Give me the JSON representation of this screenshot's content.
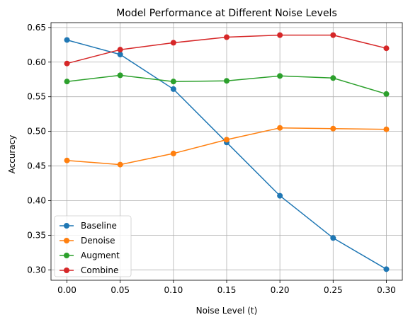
{
  "chart_data": {
    "type": "line",
    "title": "Model Performance at Different Noise Levels",
    "xlabel": "Noise Level (t)",
    "ylabel": "Accuracy",
    "x": [
      0.0,
      0.05,
      0.1,
      0.15,
      0.2,
      0.25,
      0.3
    ],
    "xlim": [
      -0.015,
      0.315
    ],
    "ylim": [
      0.285,
      0.657
    ],
    "xticks": [
      0.0,
      0.05,
      0.1,
      0.15,
      0.2,
      0.25,
      0.3
    ],
    "xtick_labels": [
      "0.00",
      "0.05",
      "0.10",
      "0.15",
      "0.20",
      "0.25",
      "0.30"
    ],
    "yticks": [
      0.3,
      0.35,
      0.4,
      0.45,
      0.5,
      0.55,
      0.6,
      0.65
    ],
    "ytick_labels": [
      "0.30",
      "0.35",
      "0.40",
      "0.45",
      "0.50",
      "0.55",
      "0.60",
      "0.65"
    ],
    "grid": true,
    "legend_position": "lower-left",
    "series": [
      {
        "name": "Baseline",
        "color": "#1f77b4",
        "values": [
          0.632,
          0.611,
          0.561,
          0.484,
          0.407,
          0.346,
          0.301
        ]
      },
      {
        "name": "Denoise",
        "color": "#ff7f0e",
        "values": [
          0.458,
          0.452,
          0.468,
          0.488,
          0.505,
          0.504,
          0.503
        ]
      },
      {
        "name": "Augment",
        "color": "#2ca02c",
        "values": [
          0.572,
          0.581,
          0.572,
          0.573,
          0.58,
          0.577,
          0.554
        ]
      },
      {
        "name": "Combine",
        "color": "#d62728",
        "values": [
          0.598,
          0.618,
          0.628,
          0.636,
          0.639,
          0.639,
          0.62
        ]
      }
    ]
  }
}
